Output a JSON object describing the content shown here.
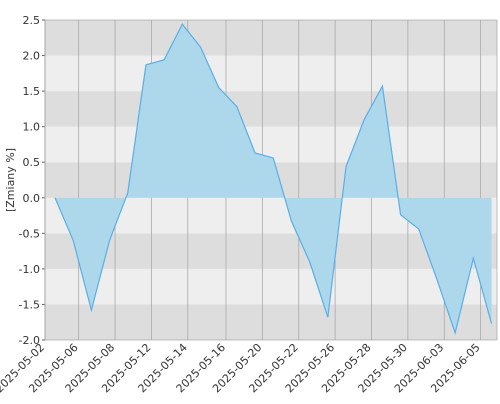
{
  "chart_data": {
    "type": "area",
    "y_label": "[Zmiany %]",
    "x": [
      0,
      1,
      2,
      3,
      4,
      5,
      6,
      7,
      8,
      9,
      10,
      11,
      12,
      13,
      14,
      15,
      16,
      17,
      18,
      19,
      20,
      21,
      22,
      23,
      24
    ],
    "series": [
      {
        "color": "#5aaee6",
        "fill": "#add8ec",
        "values": [
          0.0,
          -0.6,
          -1.58,
          -0.6,
          0.07,
          1.87,
          1.94,
          2.44,
          2.12,
          1.55,
          1.28,
          0.63,
          0.56,
          -0.33,
          -0.9,
          -1.68,
          0.44,
          1.1,
          1.57,
          -0.24,
          -0.44,
          -1.15,
          -1.9,
          -0.85,
          -1.77
        ]
      }
    ],
    "xlim": [
      -0.55,
      24.3
    ],
    "xticks": [
      {
        "value": -0.55,
        "label": "2025-05-02"
      },
      {
        "value": 1.3,
        "label": "2025-05-06"
      },
      {
        "value": 3.3,
        "label": "2025-05-08"
      },
      {
        "value": 5.3,
        "label": "2025-05-12"
      },
      {
        "value": 7.3,
        "label": "2025-05-14"
      },
      {
        "value": 9.4,
        "label": "2025-05-16"
      },
      {
        "value": 11.4,
        "label": "2025-05-20"
      },
      {
        "value": 13.4,
        "label": "2025-05-22"
      },
      {
        "value": 15.4,
        "label": "2025-05-26"
      },
      {
        "value": 17.4,
        "label": "2025-05-28"
      },
      {
        "value": 19.4,
        "label": "2025-05-30"
      },
      {
        "value": 21.4,
        "label": "2025-06-03"
      },
      {
        "value": 23.4,
        "label": "2025-06-05"
      }
    ],
    "ylim": [
      -2.0,
      2.5
    ],
    "yticks": [
      {
        "value": -2,
        "label": "-2.0"
      },
      -1.5,
      {
        "value": -1,
        "label": "-1.0"
      },
      -0.5,
      {
        "value": 0,
        "label": "0.0"
      },
      0.5,
      {
        "value": 1,
        "label": "1.0"
      },
      1.5,
      {
        "value": 2,
        "label": "2.0"
      },
      2.5
    ],
    "band_colors": [
      "#dddddd",
      "#eeeeee"
    ],
    "grid": true
  }
}
